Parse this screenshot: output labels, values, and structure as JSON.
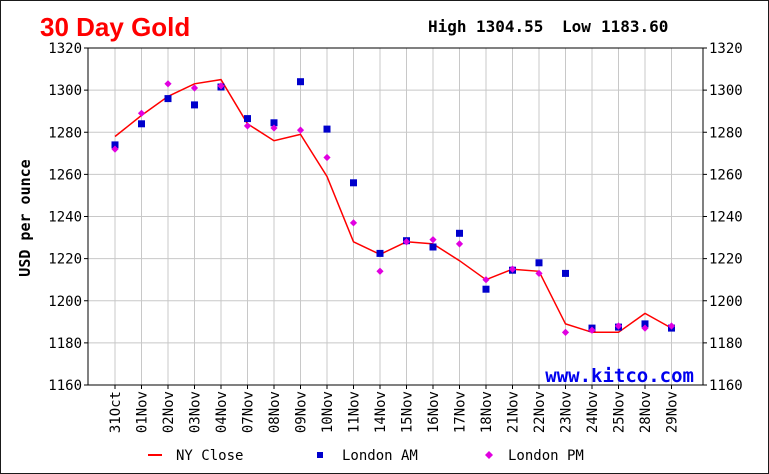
{
  "header": {
    "title": "30 Day Gold",
    "high_label": "High",
    "high_value": "1304.55",
    "low_label": "Low",
    "low_value": "1183.60"
  },
  "watermark": "www.kitco.com",
  "colors": {
    "title": "#ff0000",
    "ny_close": "#ff0000",
    "london_am": "#0000cc",
    "london_pm": "#e000e0",
    "grid": "#c8c8c8",
    "watermark": "#0000ee"
  },
  "chart_data": {
    "type": "line",
    "title": "30 Day Gold",
    "ylabel": "USD per ounce",
    "xlabel": "",
    "ylim": [
      1160,
      1320
    ],
    "yticks": [
      1160,
      1180,
      1200,
      1220,
      1240,
      1260,
      1280,
      1300,
      1320
    ],
    "grid": true,
    "legend_position": "bottom",
    "categories": [
      "31Oct",
      "01Nov",
      "02Nov",
      "03Nov",
      "04Nov",
      "07Nov",
      "08Nov",
      "09Nov",
      "10Nov",
      "11Nov",
      "14Nov",
      "15Nov",
      "16Nov",
      "17Nov",
      "18Nov",
      "21Nov",
      "22Nov",
      "23Nov",
      "24Nov",
      "25Nov",
      "28Nov",
      "29Nov"
    ],
    "series": [
      {
        "name": "NY Close",
        "kind": "line",
        "values": [
          1278,
          1288,
          1297,
          1303,
          1305,
          1284,
          1276,
          1279,
          1259,
          1228,
          1222,
          1228,
          1227,
          1219,
          1210,
          1215,
          1214,
          1189,
          1185,
          1185,
          1194,
          1187
        ]
      },
      {
        "name": "London AM",
        "kind": "square",
        "values": [
          1274,
          1284,
          1296,
          1293,
          1301.5,
          1286.5,
          1284.5,
          1304,
          1281.5,
          1256,
          1222.5,
          1228.5,
          1225.5,
          1232,
          1205.5,
          1214.5,
          1218,
          1213,
          1187,
          1187.5,
          1189,
          1187
        ]
      },
      {
        "name": "London PM",
        "kind": "diamond",
        "values": [
          1272,
          1289,
          1303,
          1301,
          1302,
          1283,
          1282,
          1281,
          1268,
          1237,
          1214,
          1228,
          1229,
          1227,
          1210,
          1215,
          1213,
          1185,
          1186,
          1188,
          1187,
          1188
        ]
      }
    ]
  }
}
